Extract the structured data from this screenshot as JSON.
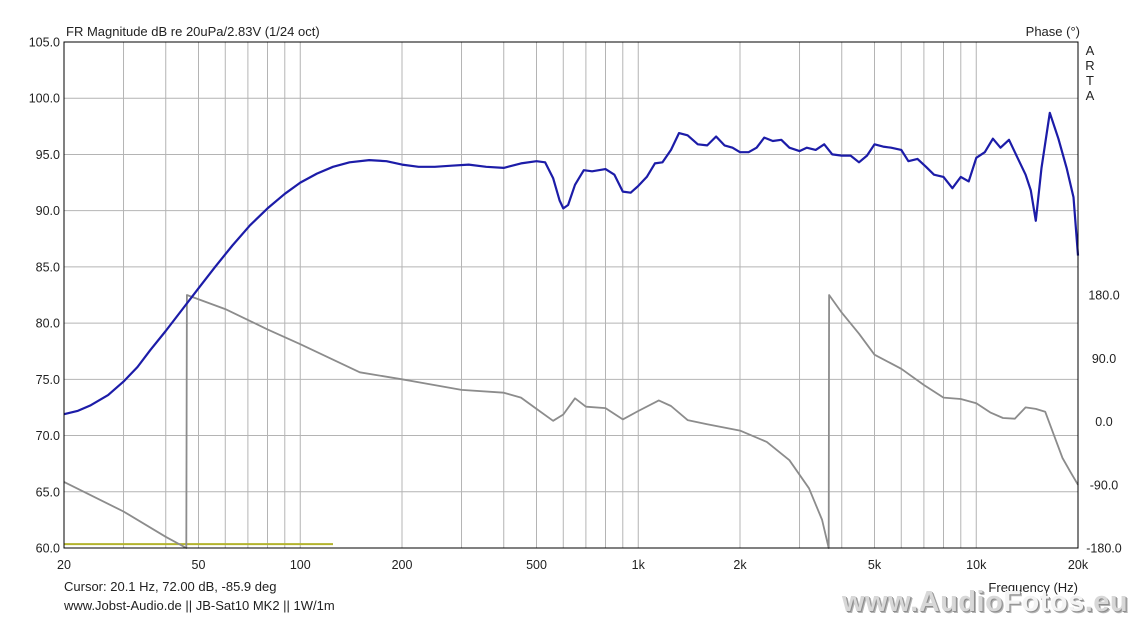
{
  "chart_data": {
    "type": "line",
    "title": "FR Magnitude dB re 20uPa/2.83V (1/24 oct)",
    "right_axis_title": "Phase (°)",
    "xlabel": "Frequency (Hz)",
    "x_scale": "log",
    "xlim": [
      20,
      20000
    ],
    "ylim": [
      60,
      105
    ],
    "y2lim": [
      -180,
      180
    ],
    "grid": true,
    "x_ticks": [
      20,
      50,
      100,
      200,
      500,
      1000,
      2000,
      5000,
      10000,
      20000
    ],
    "x_tick_labels": [
      "20",
      "50",
      "100",
      "200",
      "500",
      "1k",
      "2k",
      "5k",
      "10k",
      "20k"
    ],
    "y_ticks": [
      60,
      65,
      70,
      75,
      80,
      85,
      90,
      95,
      100,
      105
    ],
    "y_tick_labels": [
      "60.0",
      "65.0",
      "70.0",
      "75.0",
      "80.0",
      "85.0",
      "90.0",
      "95.0",
      "100.0",
      "105.0"
    ],
    "y2_ticks": [
      -180,
      -90,
      0,
      90,
      180
    ],
    "y2_tick_labels": [
      "-180.0",
      "-90.0",
      "0.0",
      "90.0",
      "180.0"
    ],
    "brand_vertical": "ARTA",
    "series": [
      {
        "axis": "left",
        "color": "#1c1ca8",
        "points": [
          [
            20,
            71.9
          ],
          [
            22,
            72.2
          ],
          [
            24,
            72.7
          ],
          [
            27,
            73.6
          ],
          [
            30,
            74.8
          ],
          [
            33,
            76.1
          ],
          [
            36,
            77.6
          ],
          [
            40,
            79.3
          ],
          [
            45,
            81.3
          ],
          [
            50,
            83.1
          ],
          [
            56,
            85.0
          ],
          [
            63,
            86.9
          ],
          [
            71,
            88.7
          ],
          [
            80,
            90.2
          ],
          [
            90,
            91.5
          ],
          [
            100,
            92.5
          ],
          [
            112,
            93.3
          ],
          [
            125,
            93.9
          ],
          [
            140,
            94.3
          ],
          [
            160,
            94.5
          ],
          [
            180,
            94.4
          ],
          [
            200,
            94.1
          ],
          [
            224,
            93.9
          ],
          [
            250,
            93.9
          ],
          [
            280,
            94.0
          ],
          [
            315,
            94.1
          ],
          [
            355,
            93.9
          ],
          [
            400,
            93.8
          ],
          [
            450,
            94.2
          ],
          [
            500,
            94.4
          ],
          [
            530,
            94.3
          ],
          [
            560,
            92.9
          ],
          [
            585,
            90.9
          ],
          [
            600,
            90.2
          ],
          [
            620,
            90.5
          ],
          [
            650,
            92.3
          ],
          [
            690,
            93.6
          ],
          [
            730,
            93.5
          ],
          [
            800,
            93.7
          ],
          [
            850,
            93.2
          ],
          [
            900,
            91.7
          ],
          [
            950,
            91.6
          ],
          [
            1000,
            92.2
          ],
          [
            1060,
            93.0
          ],
          [
            1120,
            94.2
          ],
          [
            1180,
            94.3
          ],
          [
            1250,
            95.4
          ],
          [
            1320,
            96.9
          ],
          [
            1400,
            96.7
          ],
          [
            1500,
            95.9
          ],
          [
            1600,
            95.8
          ],
          [
            1700,
            96.6
          ],
          [
            1800,
            95.8
          ],
          [
            1900,
            95.6
          ],
          [
            2000,
            95.2
          ],
          [
            2120,
            95.2
          ],
          [
            2240,
            95.6
          ],
          [
            2360,
            96.5
          ],
          [
            2500,
            96.2
          ],
          [
            2650,
            96.3
          ],
          [
            2800,
            95.6
          ],
          [
            3000,
            95.3
          ],
          [
            3150,
            95.6
          ],
          [
            3350,
            95.4
          ],
          [
            3550,
            95.9
          ],
          [
            3750,
            95.0
          ],
          [
            4000,
            94.9
          ],
          [
            4250,
            94.9
          ],
          [
            4500,
            94.3
          ],
          [
            4750,
            94.9
          ],
          [
            5000,
            95.9
          ],
          [
            5300,
            95.7
          ],
          [
            5600,
            95.6
          ],
          [
            6000,
            95.4
          ],
          [
            6300,
            94.4
          ],
          [
            6700,
            94.6
          ],
          [
            7100,
            93.9
          ],
          [
            7500,
            93.2
          ],
          [
            8000,
            93.0
          ],
          [
            8500,
            92.0
          ],
          [
            9000,
            93.0
          ],
          [
            9500,
            92.6
          ],
          [
            10000,
            94.7
          ],
          [
            10600,
            95.2
          ],
          [
            11200,
            96.4
          ],
          [
            11800,
            95.6
          ],
          [
            12500,
            96.3
          ],
          [
            13200,
            94.8
          ],
          [
            14000,
            93.2
          ],
          [
            14500,
            91.8
          ],
          [
            15000,
            89.1
          ],
          [
            15600,
            93.8
          ],
          [
            16500,
            98.7
          ],
          [
            17500,
            96.4
          ],
          [
            18500,
            93.8
          ],
          [
            19400,
            91.2
          ],
          [
            20000,
            86.0
          ]
        ]
      },
      {
        "axis": "right",
        "color": "#8c8c8c",
        "points": [
          [
            20,
            -85.9
          ],
          [
            30,
            -128
          ],
          [
            40,
            -164
          ],
          [
            46,
            -180
          ],
          [
            46.2,
            180
          ],
          [
            60,
            160
          ],
          [
            80,
            131
          ],
          [
            100,
            110
          ],
          [
            150,
            70
          ],
          [
            200,
            60
          ],
          [
            300,
            45
          ],
          [
            400,
            41
          ],
          [
            450,
            34
          ],
          [
            500,
            18
          ],
          [
            560,
            1
          ],
          [
            600,
            10
          ],
          [
            650,
            33
          ],
          [
            700,
            21
          ],
          [
            800,
            19
          ],
          [
            900,
            3
          ],
          [
            1000,
            15
          ],
          [
            1150,
            30
          ],
          [
            1250,
            22
          ],
          [
            1400,
            2
          ],
          [
            1600,
            -4
          ],
          [
            2000,
            -13
          ],
          [
            2400,
            -29
          ],
          [
            2800,
            -55
          ],
          [
            3200,
            -95
          ],
          [
            3500,
            -140
          ],
          [
            3660,
            -180
          ],
          [
            3670,
            180
          ],
          [
            4000,
            155
          ],
          [
            4500,
            125
          ],
          [
            5000,
            95
          ],
          [
            6000,
            75
          ],
          [
            7000,
            52
          ],
          [
            8000,
            34
          ],
          [
            9000,
            32
          ],
          [
            10000,
            26
          ],
          [
            11000,
            13
          ],
          [
            12000,
            5
          ],
          [
            13000,
            4
          ],
          [
            14000,
            20
          ],
          [
            15000,
            18
          ],
          [
            16000,
            14
          ],
          [
            17000,
            -20
          ],
          [
            18000,
            -52
          ],
          [
            19000,
            -72
          ],
          [
            20000,
            -90
          ]
        ]
      }
    ],
    "reference_line": {
      "color": "#b3b32d",
      "y": 60.35,
      "x_start": 20,
      "x_end": 125
    }
  },
  "info": {
    "cursor": "Cursor: 20.1 Hz, 72.00 dB, -85.9 deg",
    "footer": "www.Jobst-Audio.de  ||  JB-Sat10 MK2  ||  1W/1m"
  },
  "watermark": {
    "prefix": "www.Audio",
    "emphasis": "Fotos",
    "suffix": ".eu"
  }
}
